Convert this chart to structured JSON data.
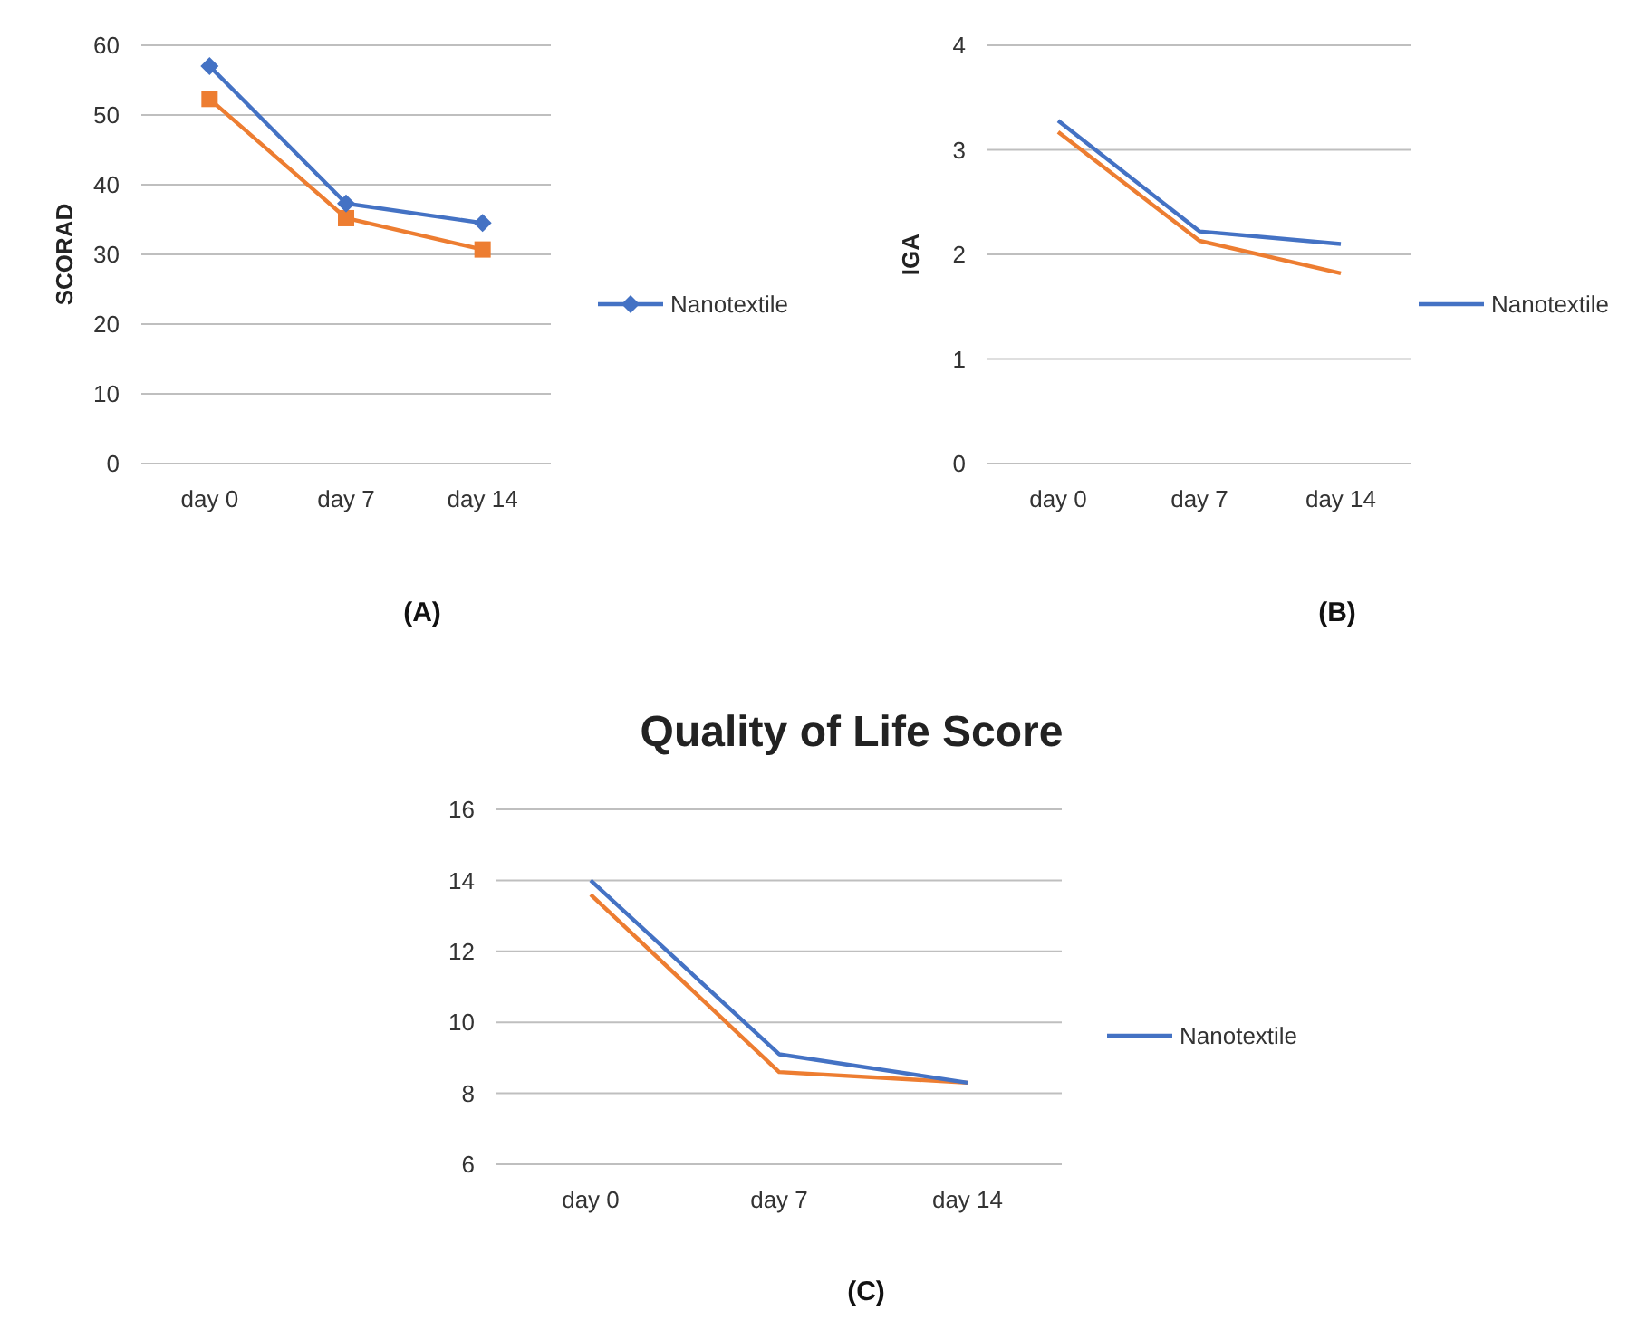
{
  "chart_data": [
    {
      "type": "line",
      "ylabel": "SCORAD",
      "categories": [
        "day 0",
        "day 7",
        "day 14"
      ],
      "ylim": [
        0,
        60
      ],
      "yticks": [
        0,
        10,
        20,
        30,
        40,
        50,
        60
      ],
      "grid": "y",
      "legend": "right",
      "annotations": [
        "(A)"
      ],
      "series": [
        {
          "color": "#ed7d31",
          "marker": "square",
          "values": [
            52.3,
            35.2,
            30.7
          ]
        },
        {
          "name": "Nanotextile",
          "color": "#4472c4",
          "marker": "diamond",
          "values": [
            57,
            37.3,
            34.5
          ]
        }
      ]
    },
    {
      "type": "line",
      "ylabel": "IGA",
      "categories": [
        "day 0",
        "day 7",
        "day 14"
      ],
      "ylim": [
        0,
        4
      ],
      "yticks": [
        0,
        1,
        2,
        3,
        4
      ],
      "grid": "y",
      "legend": "right",
      "annotations": [
        "(B)"
      ],
      "series": [
        {
          "color": "#ed7d31",
          "values": [
            3.17,
            2.13,
            1.82
          ]
        },
        {
          "name": "Nanotextile",
          "color": "#4472c4",
          "values": [
            3.28,
            2.22,
            2.1
          ]
        }
      ]
    },
    {
      "type": "line",
      "title": "Quality of Life Score",
      "categories": [
        "day 0",
        "day 7",
        "day 14"
      ],
      "ylim": [
        6,
        16
      ],
      "yticks": [
        6,
        8,
        10,
        12,
        14,
        16
      ],
      "grid": "y",
      "legend": "right",
      "annotations": [
        "(C)"
      ],
      "series": [
        {
          "color": "#ed7d31",
          "values": [
            13.6,
            8.6,
            8.3
          ]
        },
        {
          "name": "Nanotextile",
          "color": "#4472c4",
          "values": [
            14.0,
            9.1,
            8.3
          ]
        }
      ]
    }
  ]
}
